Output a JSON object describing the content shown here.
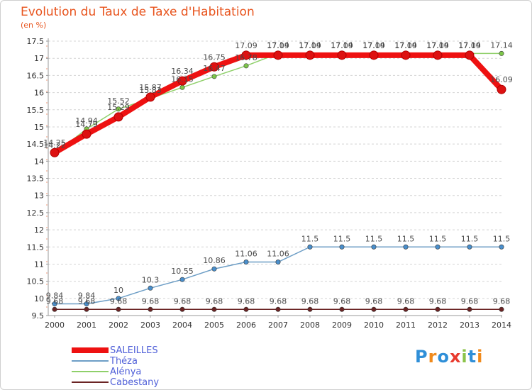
{
  "chart_data": {
    "type": "line",
    "title": "Evolution du Taux de Taxe d'Habitation",
    "unit_label": "(en %)",
    "xlabel": "",
    "ylabel": "",
    "ylim": [
      9.5,
      17.5
    ],
    "y_ticks": [
      "9.5",
      "10",
      "10.5",
      "11",
      "11.5",
      "12",
      "12.5",
      "13",
      "13.5",
      "14",
      "14.5",
      "15",
      "15.5",
      "16",
      "16.5",
      "17",
      "17.5"
    ],
    "x": [
      "2000",
      "2001",
      "2002",
      "2003",
      "2004",
      "2005",
      "2006",
      "2007",
      "2008",
      "2009",
      "2010",
      "2011",
      "2012",
      "2013",
      "2014"
    ],
    "grid": "horizontal",
    "legend_position": "bottom-left",
    "series": [
      {
        "name": "Cabestany",
        "color": "#6b2424",
        "marker": "#6b2424",
        "values": [
          9.68,
          9.68,
          9.68,
          9.68,
          9.68,
          9.68,
          9.68,
          9.68,
          9.68,
          9.68,
          9.68,
          9.68,
          9.68,
          9.68,
          9.68
        ],
        "labels": [
          "9.68",
          "9.68",
          "9.68",
          "9.68",
          "9.68",
          "9.68",
          "9.68",
          "9.68",
          "9.68",
          "9.68",
          "9.68",
          "9.68",
          "9.68",
          "9.68",
          "9.68"
        ]
      },
      {
        "name": "Théza",
        "color": "#6d9ec6",
        "marker": "#4a8fcc",
        "values": [
          9.84,
          9.84,
          10,
          10.3,
          10.55,
          10.86,
          11.06,
          11.06,
          11.5,
          11.5,
          11.5,
          11.5,
          11.5,
          11.5,
          11.5
        ],
        "labels": [
          "9.84",
          "9.84",
          "10",
          "10.3",
          "10.55",
          "10.86",
          "11.06",
          "11.06",
          "11.5",
          "11.5",
          "11.5",
          "11.5",
          "11.5",
          "11.5",
          "11.5"
        ]
      },
      {
        "name": "Alénya",
        "color": "#8fd06a",
        "marker": "#7dc64a",
        "values": [
          14.22,
          14.94,
          15.52,
          15.83,
          16.15,
          16.47,
          16.78,
          17.14,
          17.14,
          17.14,
          17.14,
          17.14,
          17.14,
          17.14,
          17.14
        ],
        "labels": [
          "14.22",
          "14.94",
          "15.52",
          "15.83",
          "16.15",
          "16.47",
          "16.78",
          "17.14",
          "17.14",
          "17.14",
          "17.14",
          "17.14",
          "17.14",
          "17.14",
          "17.14"
        ]
      },
      {
        "name": "SALEILLES",
        "color": "#ee1111",
        "marker": "#dd1111",
        "values": [
          14.25,
          14.79,
          15.29,
          15.87,
          16.34,
          16.75,
          17.09,
          17.09,
          17.09,
          17.09,
          17.09,
          17.09,
          17.09,
          17.09,
          16.09
        ],
        "labels": [
          "14.25",
          "14.79",
          "15.29",
          "15.87",
          "16.34",
          "16.75",
          "17.09",
          "17.09",
          "17.09",
          "17.09",
          "17.09",
          "17.09",
          "17.09",
          "17.09",
          "16.09"
        ]
      }
    ]
  },
  "legend_items": [
    {
      "label": "SALEILLES",
      "color": "#ee1111",
      "weight": 8
    },
    {
      "label": "Théza",
      "color": "#6d9ec6",
      "weight": 2
    },
    {
      "label": "Alénya",
      "color": "#8fd06a",
      "weight": 2
    },
    {
      "label": "Cabestany",
      "color": "#6b2424",
      "weight": 2
    }
  ],
  "watermark": {
    "letters": [
      "P",
      "r",
      "o",
      "x",
      "i",
      "t",
      "i"
    ],
    "colors": [
      "#2f8fd8",
      "#f08a1c",
      "#2f8fd8",
      "#e83b2f",
      "#8bc34a",
      "#2f8fd8",
      "#f08a1c"
    ]
  }
}
